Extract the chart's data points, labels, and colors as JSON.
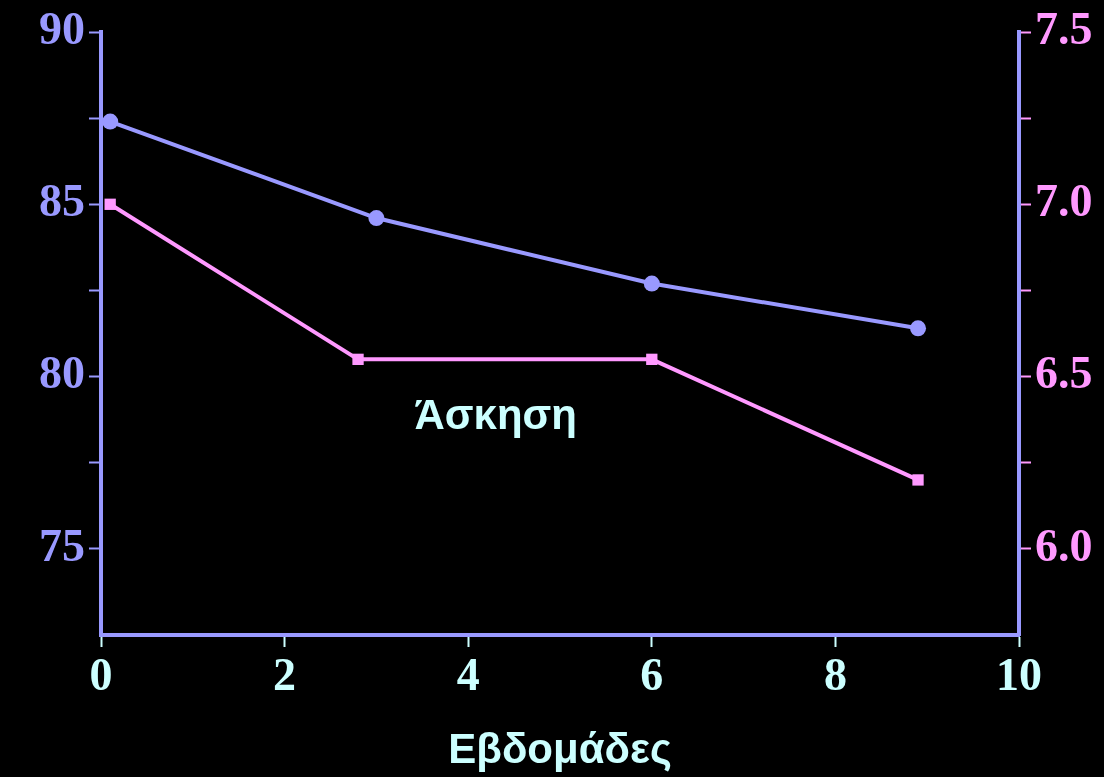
{
  "chart_data": {
    "type": "line",
    "xlabel": "Εβδομάδες",
    "annotations": [
      "Άσκηση"
    ],
    "xlim": [
      0,
      10
    ],
    "xticks": [
      0,
      2,
      4,
      6,
      8,
      10
    ],
    "ylim": [
      72.5,
      90
    ],
    "yticks": [
      75,
      {
        "value": 77.5,
        "label": null
      },
      80,
      {
        "value": 82.5,
        "label": null
      },
      85,
      {
        "value": 87.5,
        "label": null
      },
      90
    ],
    "y2lim": [
      5.75,
      7.5
    ],
    "y2ticks": [
      {
        "value": 6,
        "label": "6.0"
      },
      {
        "value": 6.25,
        "label": null
      },
      {
        "value": 6.5,
        "label": "6.5"
      },
      {
        "value": 6.75,
        "label": null
      },
      {
        "value": 7,
        "label": "7.0"
      },
      {
        "value": 7.25,
        "label": null
      },
      {
        "value": 7.5,
        "label": "7.5"
      }
    ],
    "grid": false,
    "legend": false,
    "line_style": "solid",
    "series": [
      {
        "color": "#9999ff",
        "marker": "circle",
        "x": [
          0.1,
          3.0,
          6.0,
          8.9
        ],
        "values": [
          87.4,
          84.6,
          82.7,
          81.4
        ]
      },
      {
        "color": "#ff99ff",
        "marker": "square",
        "axis": "y2",
        "x": [
          0.1,
          2.8,
          6.0,
          8.9
        ],
        "values": [
          7.0,
          6.55,
          6.55,
          6.2
        ]
      }
    ]
  }
}
